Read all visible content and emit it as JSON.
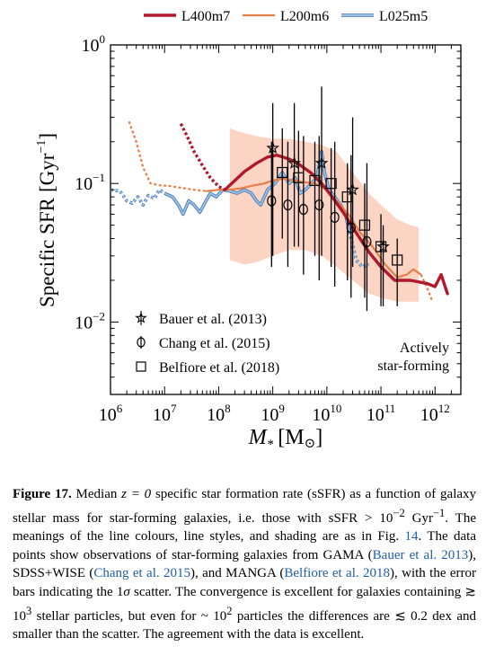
{
  "chart_data": {
    "type": "line",
    "xlabel_main": "M",
    "xlabel_sub": "*",
    "xlabel_unit": "[M",
    "xlabel_unit_sym": "⊙",
    "xlabel_unit_close": "]",
    "ylabel": "Specific SFR",
    "ylabel_unit": "[Gyr",
    "ylabel_unit_exp": "−1",
    "ylabel_unit_close": "]",
    "x_scale": "log",
    "y_scale": "log",
    "xlim": [
      1000000,
      3000000000000
    ],
    "ylim": [
      0.003,
      1
    ],
    "x_tick_labels": [
      {
        "value": 1000000,
        "base": "10",
        "exp": "6"
      },
      {
        "value": 10000000,
        "base": "10",
        "exp": "7"
      },
      {
        "value": 100000000,
        "base": "10",
        "exp": "8"
      },
      {
        "value": 1000000000,
        "base": "10",
        "exp": "9"
      },
      {
        "value": 10000000000,
        "base": "10",
        "exp": "10"
      },
      {
        "value": 100000000000,
        "base": "10",
        "exp": "11"
      },
      {
        "value": 1000000000000,
        "base": "10",
        "exp": "12"
      }
    ],
    "y_tick_labels": [
      {
        "value": 1,
        "base": "10",
        "exp": "0"
      },
      {
        "value": 0.1,
        "base": "10",
        "exp": "−1"
      },
      {
        "value": 0.01,
        "base": "10",
        "exp": "−2"
      }
    ],
    "annotation_line1": "Actively",
    "annotation_line2": "star-forming",
    "series": [
      {
        "name": "L400m7",
        "color": "#b2182b",
        "width": 3.4,
        "points_dashed": [
          [
            20000000,
            0.27
          ],
          [
            26000000,
            0.22
          ],
          [
            35000000,
            0.17
          ],
          [
            50000000,
            0.135
          ],
          [
            70000000,
            0.11
          ],
          [
            100000000,
            0.095
          ],
          [
            130000000,
            0.09
          ]
        ],
        "points": [
          [
            130000000,
            0.09
          ],
          [
            200000000,
            0.105
          ],
          [
            300000000,
            0.122
          ],
          [
            500000000,
            0.14
          ],
          [
            800000000,
            0.155
          ],
          [
            1200000000,
            0.16
          ],
          [
            2000000000,
            0.15
          ],
          [
            3000000000,
            0.138
          ],
          [
            5000000000,
            0.12
          ],
          [
            8000000000,
            0.1
          ],
          [
            12000000000,
            0.082
          ],
          [
            20000000000,
            0.062
          ],
          [
            35000000000,
            0.044
          ],
          [
            60000000000,
            0.032
          ],
          [
            100000000000,
            0.025
          ],
          [
            180000000000,
            0.02
          ],
          [
            350000000000,
            0.02
          ],
          [
            700000000000,
            0.019
          ],
          [
            1000000000000,
            0.018
          ],
          [
            1300000000000,
            0.022
          ],
          [
            1700000000000,
            0.016
          ]
        ]
      },
      {
        "name": "L200m6",
        "color": "#e67e46",
        "width": 2.2,
        "points_dashed": [
          [
            2200000,
            0.28
          ],
          [
            3000000,
            0.2
          ],
          [
            4000000,
            0.13
          ],
          [
            5500000,
            0.1
          ],
          [
            8000000,
            0.097
          ],
          [
            12000000,
            0.096
          ],
          [
            20000000,
            0.093
          ],
          [
            35000000,
            0.09
          ],
          [
            60000000,
            0.088
          ]
        ],
        "points": [
          [
            60000000,
            0.088
          ],
          [
            100000000,
            0.09
          ],
          [
            150000000,
            0.09
          ],
          [
            250000000,
            0.092
          ],
          [
            400000000,
            0.096
          ],
          [
            700000000,
            0.1
          ],
          [
            1000000000,
            0.105
          ],
          [
            1500000000,
            0.108
          ],
          [
            2500000000,
            0.105
          ],
          [
            4000000000,
            0.102
          ],
          [
            6000000000,
            0.1
          ],
          [
            10000000000,
            0.09
          ],
          [
            15000000000,
            0.075
          ],
          [
            25000000000,
            0.06
          ],
          [
            40000000000,
            0.045
          ],
          [
            70000000000,
            0.035
          ],
          [
            120000000000,
            0.026
          ],
          [
            200000000000,
            0.021
          ],
          [
            300000000000,
            0.022
          ],
          [
            400000000000,
            0.024
          ],
          [
            550000000000,
            0.022
          ]
        ],
        "points_dashed_tail": [
          [
            550000000000,
            0.022
          ],
          [
            700000000000,
            0.018
          ],
          [
            900000000000,
            0.014
          ]
        ]
      },
      {
        "name": "L025m5",
        "color": "#9cc3e4",
        "width": 1.9,
        "points_dashed": [
          [
            1000000,
            0.09
          ],
          [
            1500000,
            0.088
          ],
          [
            2000000,
            0.075
          ],
          [
            2500000,
            0.072
          ],
          [
            3200000,
            0.08
          ],
          [
            4000000,
            0.07
          ],
          [
            5000000,
            0.082
          ],
          [
            6500000,
            0.078
          ],
          [
            8000000,
            0.09
          ],
          [
            10000000,
            0.085
          ]
        ],
        "points": [
          [
            10000000,
            0.085
          ],
          [
            14000000,
            0.08
          ],
          [
            18000000,
            0.07
          ],
          [
            22000000,
            0.06
          ],
          [
            28000000,
            0.075
          ],
          [
            35000000,
            0.07
          ],
          [
            45000000,
            0.062
          ],
          [
            55000000,
            0.072
          ],
          [
            70000000,
            0.085
          ],
          [
            90000000,
            0.08
          ],
          [
            120000000,
            0.09
          ],
          [
            160000000,
            0.088
          ],
          [
            220000000,
            0.085
          ],
          [
            300000000,
            0.09
          ],
          [
            400000000,
            0.085
          ],
          [
            500000000,
            0.075
          ],
          [
            600000000,
            0.07
          ],
          [
            800000000,
            0.09
          ],
          [
            1100000000,
            0.1
          ],
          [
            1500000000,
            0.12
          ],
          [
            2000000000,
            0.1
          ],
          [
            2600000000,
            0.11
          ],
          [
            3200000000,
            0.085
          ],
          [
            4000000000,
            0.09
          ],
          [
            5200000000,
            0.1
          ],
          [
            6500000000,
            0.11
          ],
          [
            8000000000,
            0.17
          ],
          [
            9000000000,
            0.12
          ],
          [
            11000000000,
            0.09
          ],
          [
            14000000000,
            0.08
          ],
          [
            18000000000,
            0.07
          ],
          [
            22000000000,
            0.06
          ],
          [
            26000000000,
            0.045
          ]
        ],
        "points_dashed_tail": [
          [
            26000000000,
            0.045
          ],
          [
            35000000000,
            0.028
          ],
          [
            45000000000,
            0.025
          ],
          [
            60000000000,
            0.026
          ]
        ]
      }
    ],
    "scatter_band": {
      "color": "#fbcdb8",
      "x": [
        160000000,
        300000000,
        500000000,
        1000000000,
        2000000000,
        4000000000,
        8000000000,
        15000000000,
        30000000000,
        60000000000,
        100000000000,
        200000000000,
        350000000000,
        500000000000
      ],
      "upper": [
        0.25,
        0.23,
        0.22,
        0.21,
        0.21,
        0.2,
        0.19,
        0.17,
        0.12,
        0.085,
        0.07,
        0.055,
        0.05,
        0.048
      ],
      "lower": [
        0.028,
        0.026,
        0.027,
        0.03,
        0.033,
        0.033,
        0.03,
        0.025,
        0.02,
        0.016,
        0.015,
        0.014,
        0.014,
        0.014
      ]
    },
    "observations": [
      {
        "name": "Bauer et al. (2013)",
        "marker": "star",
        "x": [
          1000000000,
          2500000000,
          8000000000,
          30000000000,
          110000000000
        ],
        "y": [
          0.18,
          0.14,
          0.14,
          0.09,
          0.035
        ],
        "ylo": [
          0.03,
          0.035,
          0.03,
          0.025,
          0.013
        ],
        "yhi": [
          0.38,
          0.38,
          0.5,
          0.3,
          0.05
        ]
      },
      {
        "name": "Chang et al. (2015)",
        "marker": "circle",
        "x": [
          950000000,
          1900000000,
          3700000000,
          7200000000,
          14000000000,
          28000000000,
          55000000000
        ],
        "y": [
          0.075,
          0.07,
          0.065,
          0.07,
          0.057,
          0.048,
          0.038
        ],
        "ylo": [
          0.025,
          0.025,
          0.022,
          0.02,
          0.018,
          0.015,
          0.012
        ],
        "yhi": [
          0.2,
          0.2,
          0.22,
          0.22,
          0.2,
          0.16,
          0.14
        ]
      },
      {
        "name": "Belfiore et al. (2018)",
        "marker": "square",
        "x": [
          1500000000,
          3000000000,
          6000000000,
          12000000000,
          24000000000,
          50000000000,
          100000000000,
          200000000000
        ],
        "y": [
          0.12,
          0.11,
          0.105,
          0.1,
          0.08,
          0.05,
          0.035,
          0.028
        ],
        "ylo": [
          0.04,
          0.035,
          0.03,
          0.025,
          0.02,
          0.015,
          0.013,
          0.013
        ],
        "yhi": [
          0.25,
          0.24,
          0.2,
          0.18,
          0.14,
          0.1,
          0.06,
          0.04
        ]
      }
    ]
  },
  "caption": {
    "label": "Figure 17.",
    "text_1": " Median ",
    "z_eq": "z = 0",
    "text_2": " specific star formation rate (sSFR) as a function of galaxy stellar mass for star-forming galaxies, i.e. those with sSFR > 10",
    "exp_1": "−2",
    "text_3": " Gyr",
    "exp_2": "−1",
    "text_4": ". The meanings of the line colours, line styles, and shading are as in Fig. ",
    "fig_ref": "14",
    "text_5": ". The data points show observations of star-forming galaxies from GAMA (",
    "ref_1": "Bauer et al. 2013",
    "text_6": "), SDSS+WISE (",
    "ref_2": "Chang et al. 2015",
    "text_7": "), and MANGA (",
    "ref_3": "Belfiore et al. 2018",
    "text_8": "), with the error bars indicating the 1",
    "sigma": "σ",
    "text_9": " scatter. The convergence is excellent for galaxies containing ≳ 10",
    "exp_3": "3",
    "text_10": " stellar particles, but even for ~ 10",
    "exp_4": "2",
    "text_11": " particles the differences are ≲ 0.2 dex and smaller than the scatter. The agreement with the data is excellent."
  }
}
